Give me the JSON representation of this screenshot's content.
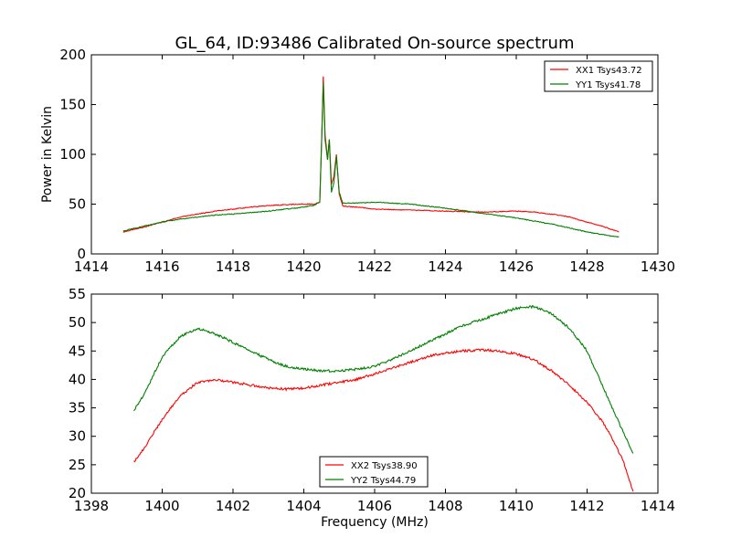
{
  "figure_title": "GL_64, ID:93486 Calibrated On-source spectrum",
  "colors": {
    "xx": "#ff0000",
    "yy": "#008000",
    "axes": "#000000"
  },
  "chart_data": [
    {
      "type": "line",
      "title": "GL_64, ID:93486 Calibrated On-source spectrum",
      "xlabel": "",
      "ylabel": "Power in Kelvin",
      "xlim": [
        1414,
        1430
      ],
      "ylim": [
        0,
        200
      ],
      "xticks": [
        1414,
        1416,
        1418,
        1420,
        1422,
        1424,
        1426,
        1428,
        1430
      ],
      "yticks": [
        0,
        50,
        100,
        150,
        200
      ],
      "legend_loc": "upper right",
      "series": [
        {
          "name": "XX1 Tsys43.72",
          "color": "#ff0000",
          "points": [
            [
              1414.9,
              22
            ],
            [
              1415.5,
              27
            ],
            [
              1416,
              32
            ],
            [
              1416.5,
              37
            ],
            [
              1417,
              40
            ],
            [
              1417.5,
              43
            ],
            [
              1418,
              45
            ],
            [
              1418.5,
              47
            ],
            [
              1419,
              48.5
            ],
            [
              1419.5,
              49.5
            ],
            [
              1420,
              50
            ],
            [
              1420.3,
              50
            ],
            [
              1420.45,
              52
            ],
            [
              1420.5,
              110
            ],
            [
              1420.55,
              178
            ],
            [
              1420.6,
              120
            ],
            [
              1420.67,
              95
            ],
            [
              1420.72,
              115
            ],
            [
              1420.78,
              70
            ],
            [
              1420.85,
              78
            ],
            [
              1420.92,
              100
            ],
            [
              1421,
              60
            ],
            [
              1421.1,
              48
            ],
            [
              1421.5,
              47
            ],
            [
              1422,
              45
            ],
            [
              1423,
              44
            ],
            [
              1424,
              43
            ],
            [
              1425,
              42
            ],
            [
              1425.5,
              42.5
            ],
            [
              1426,
              43
            ],
            [
              1426.5,
              42
            ],
            [
              1427,
              40
            ],
            [
              1427.5,
              37
            ],
            [
              1428,
              32
            ],
            [
              1428.5,
              27
            ],
            [
              1428.9,
              22
            ]
          ]
        },
        {
          "name": "YY1 Tsys41.78",
          "color": "#008000",
          "points": [
            [
              1414.9,
              23
            ],
            [
              1415.5,
              28
            ],
            [
              1416,
              32
            ],
            [
              1416.5,
              35
            ],
            [
              1417,
              37
            ],
            [
              1417.5,
              39
            ],
            [
              1418,
              40
            ],
            [
              1418.5,
              41.5
            ],
            [
              1419,
              43
            ],
            [
              1419.5,
              45
            ],
            [
              1420,
              47
            ],
            [
              1420.3,
              49
            ],
            [
              1420.45,
              52
            ],
            [
              1420.5,
              110
            ],
            [
              1420.55,
              172
            ],
            [
              1420.6,
              115
            ],
            [
              1420.67,
              95
            ],
            [
              1420.72,
              115
            ],
            [
              1420.78,
              62
            ],
            [
              1420.85,
              72
            ],
            [
              1420.92,
              98
            ],
            [
              1421,
              62
            ],
            [
              1421.1,
              51
            ],
            [
              1421.5,
              51
            ],
            [
              1422,
              52
            ],
            [
              1423,
              50
            ],
            [
              1424,
              46
            ],
            [
              1425,
              41
            ],
            [
              1426,
              36
            ],
            [
              1427,
              30
            ],
            [
              1427.5,
              26
            ],
            [
              1428,
              22
            ],
            [
              1428.5,
              19
            ],
            [
              1428.9,
              17
            ]
          ]
        }
      ]
    },
    {
      "type": "line",
      "title": "",
      "xlabel": "Frequency (MHz)",
      "ylabel": "",
      "xlim": [
        1398,
        1414
      ],
      "ylim": [
        20,
        55
      ],
      "xticks": [
        1398,
        1400,
        1402,
        1404,
        1406,
        1408,
        1410,
        1412,
        1414
      ],
      "yticks": [
        20,
        25,
        30,
        35,
        40,
        45,
        50,
        55
      ],
      "legend_loc": "lower center",
      "series": [
        {
          "name": "XX2 Tsys38.90",
          "color": "#ff0000",
          "points": [
            [
              1399.2,
              25.5
            ],
            [
              1399.5,
              28
            ],
            [
              1400,
              33
            ],
            [
              1400.5,
              37
            ],
            [
              1401,
              39.5
            ],
            [
              1401.5,
              40
            ],
            [
              1402,
              39.5
            ],
            [
              1402.5,
              39
            ],
            [
              1403,
              38.5
            ],
            [
              1403.5,
              38.3
            ],
            [
              1404,
              38.5
            ],
            [
              1404.5,
              39
            ],
            [
              1405,
              39.5
            ],
            [
              1405.5,
              40
            ],
            [
              1406,
              41
            ],
            [
              1406.5,
              42
            ],
            [
              1407,
              43
            ],
            [
              1407.5,
              44
            ],
            [
              1408,
              44.7
            ],
            [
              1408.5,
              45
            ],
            [
              1409,
              45.2
            ],
            [
              1409.5,
              45
            ],
            [
              1410,
              44.5
            ],
            [
              1410.5,
              43.5
            ],
            [
              1411,
              41.5
            ],
            [
              1411.5,
              39
            ],
            [
              1412,
              36
            ],
            [
              1412.5,
              32
            ],
            [
              1413,
              26
            ],
            [
              1413.3,
              20.3
            ]
          ]
        },
        {
          "name": "YY2 Tsys44.79",
          "color": "#008000",
          "points": [
            [
              1399.2,
              34.5
            ],
            [
              1399.5,
              37.5
            ],
            [
              1400,
              44
            ],
            [
              1400.5,
              47.5
            ],
            [
              1401,
              49
            ],
            [
              1401.5,
              48
            ],
            [
              1402,
              46.5
            ],
            [
              1402.5,
              45
            ],
            [
              1403,
              43.5
            ],
            [
              1403.5,
              42.3
            ],
            [
              1404,
              41.8
            ],
            [
              1404.5,
              41.5
            ],
            [
              1405,
              41.5
            ],
            [
              1405.5,
              41.8
            ],
            [
              1406,
              42.3
            ],
            [
              1406.5,
              43.5
            ],
            [
              1407,
              45
            ],
            [
              1407.5,
              46.5
            ],
            [
              1408,
              48
            ],
            [
              1408.5,
              49.5
            ],
            [
              1409,
              50.5
            ],
            [
              1409.5,
              51.5
            ],
            [
              1410,
              52.5
            ],
            [
              1410.5,
              52.8
            ],
            [
              1411,
              51.5
            ],
            [
              1411.5,
              49
            ],
            [
              1412,
              45
            ],
            [
              1412.5,
              38
            ],
            [
              1413,
              31
            ],
            [
              1413.3,
              27
            ]
          ]
        }
      ]
    }
  ]
}
